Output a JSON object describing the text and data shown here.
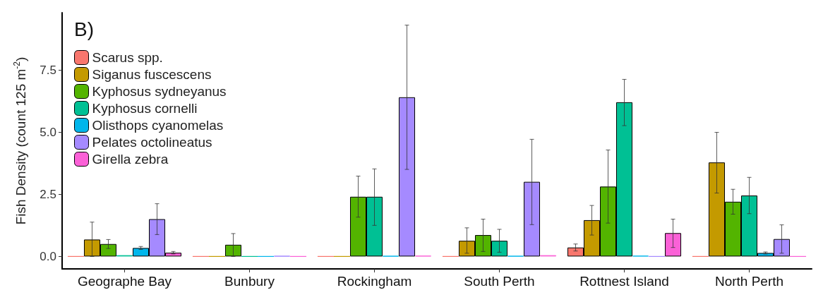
{
  "chart_data": {
    "type": "bar",
    "title": "B)",
    "ylabel": "Fish Density (count 125 m$^{-2}$)",
    "categories": [
      "Geographe Bay",
      "Bunbury",
      "Rockingham",
      "South Perth",
      "Rottnest Island",
      "North Perth"
    ],
    "ylim": [
      -0.5,
      9.8
    ],
    "yticks": [
      {
        "value": 0,
        "label": "0.0"
      },
      {
        "value": 2.5,
        "label": "2.5"
      },
      {
        "value": 5,
        "label": "5.0"
      },
      {
        "value": 7.5,
        "label": "7.5"
      }
    ],
    "grid": false,
    "legend": "top left",
    "series": [
      {
        "name": "Scarus spp.",
        "color": "#f8766d",
        "values": [
          0,
          0,
          0,
          0,
          0.36,
          0
        ],
        "errors": [
          null,
          null,
          null,
          null,
          [
            0.22,
            0.5
          ],
          null
        ]
      },
      {
        "name": "Siganus fuscescens",
        "color": "#c49a00",
        "values": [
          0.68,
          0,
          0,
          0.63,
          1.46,
          3.78
        ],
        "errors": [
          [
            0,
            1.38
          ],
          null,
          null,
          [
            0.13,
            1.15
          ],
          [
            0.86,
            2.05
          ],
          [
            2.55,
            4.99
          ]
        ]
      },
      {
        "name": "Kyphosus sydneyanus",
        "color": "#53b400",
        "values": [
          0.5,
          0.47,
          2.4,
          0.86,
          2.81,
          2.2
        ],
        "errors": [
          [
            0.32,
            0.68
          ],
          [
            0,
            0.92
          ],
          [
            1.58,
            3.23
          ],
          [
            0.2,
            1.5
          ],
          [
            1.34,
            4.28
          ],
          [
            1.7,
            2.7
          ]
        ]
      },
      {
        "name": "Kyphosus cornelli",
        "color": "#00c094",
        "values": [
          0.05,
          0,
          2.4,
          0.63,
          6.2,
          2.45
        ],
        "errors": [
          null,
          null,
          [
            1.25,
            3.52
          ],
          [
            0.17,
            1.09
          ],
          [
            5.26,
            7.12
          ],
          [
            1.72,
            3.18
          ]
        ]
      },
      {
        "name": "Olisthops cyanomelas",
        "color": "#00b6eb",
        "values": [
          0.34,
          0,
          0.02,
          0.02,
          0.03,
          0.14
        ],
        "errors": [
          [
            0.28,
            0.4
          ],
          null,
          null,
          null,
          null,
          [
            0.1,
            0.18
          ]
        ]
      },
      {
        "name": "Pelates octolineatus",
        "color": "#a58aff",
        "values": [
          1.5,
          0.02,
          6.4,
          3.0,
          0,
          0.7
        ],
        "errors": [
          [
            0.88,
            2.12
          ],
          null,
          [
            3.5,
            9.3
          ],
          [
            1.28,
            4.71
          ],
          null,
          [
            0.13,
            1.27
          ]
        ]
      },
      {
        "name": "Girella zebra",
        "color": "#fb61d7",
        "values": [
          0.15,
          0,
          0.03,
          0.05,
          0.94,
          0
        ],
        "errors": [
          [
            0.1,
            0.2
          ],
          null,
          null,
          null,
          [
            0.36,
            1.5
          ],
          null
        ]
      }
    ]
  }
}
